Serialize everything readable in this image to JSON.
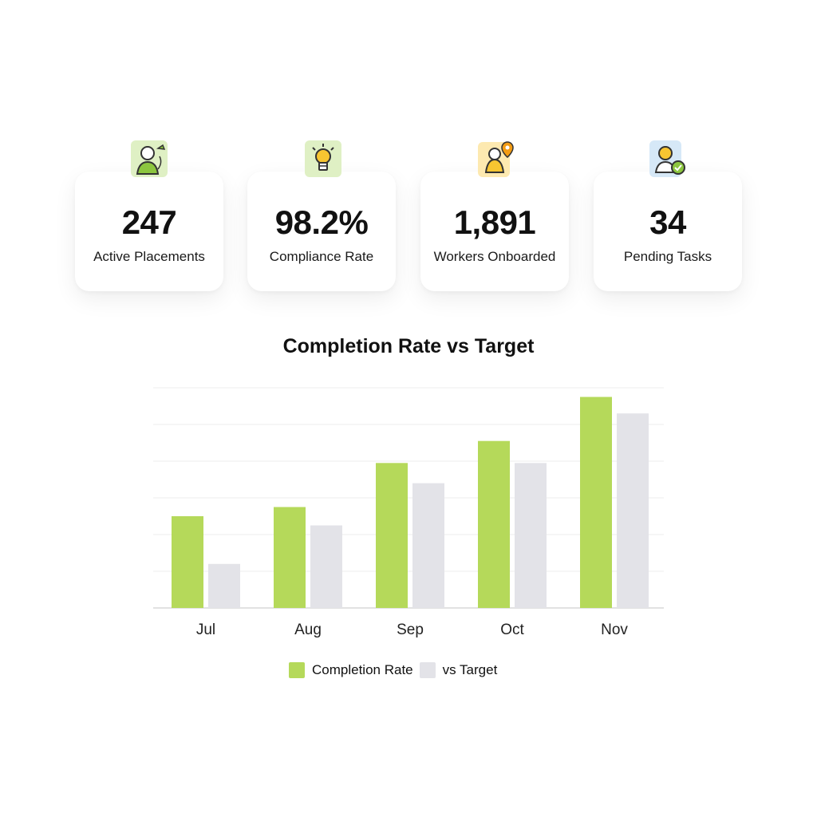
{
  "stats": [
    {
      "value": "247",
      "label": "Active Placements",
      "icon": "worker-icon"
    },
    {
      "value": "98.2%",
      "label": "Compliance Rate",
      "icon": "lightbulb-icon"
    },
    {
      "value": "1,891",
      "label": "Workers Onboarded",
      "icon": "location-pin-icon"
    },
    {
      "value": "34",
      "label": "Pending Tasks",
      "icon": "pending-user-icon"
    }
  ],
  "colors": {
    "completion": "#b5d95a",
    "target": "#e3e3e8",
    "grid": "#eeeeee",
    "axis": "#d9d9d9"
  },
  "chart_data": {
    "type": "bar",
    "title": "Completion Rate vs Target",
    "categories": [
      "Jul",
      "Aug",
      "Sep",
      "Oct",
      "Nov"
    ],
    "series": [
      {
        "name": "Completion Rate",
        "values": [
          50,
          55,
          79,
          91,
          115
        ]
      },
      {
        "name": "vs Target",
        "values": [
          24,
          45,
          68,
          79,
          106
        ]
      }
    ],
    "ylim": [
      0,
      120
    ],
    "grid": true,
    "legend_position": "bottom"
  }
}
